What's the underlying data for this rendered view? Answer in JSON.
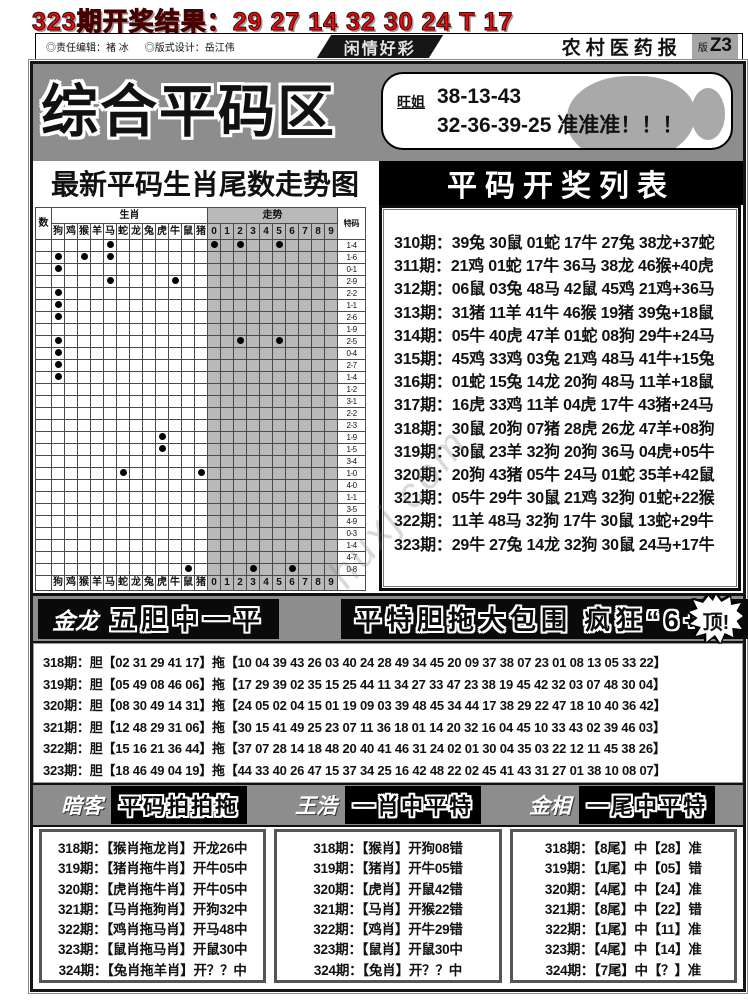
{
  "banner": {
    "text": "323期开奖结果：29 27 14 32 30 24 T 17"
  },
  "masthead": {
    "editor": "◎责任编辑：褚 冰",
    "designer": "◎版式设计：岳江伟",
    "center": "闲情好彩",
    "paper": "农村医药报",
    "edition_prefix": "版",
    "edition_code": "Z3"
  },
  "zone": {
    "title": "综合平码区",
    "tipster": "旺姐",
    "line1": "38-13-43",
    "line2": "32-36-39-25 准准准！！！"
  },
  "trend": {
    "title": "最新平码生肖尾数走势图",
    "left_header": "数",
    "group1": "生肖",
    "group2": "走势",
    "right_header": "特码",
    "zodiac": [
      "狗",
      "鸡",
      "猴",
      "羊",
      "马",
      "蛇",
      "龙",
      "兔",
      "虎",
      "牛",
      "鼠",
      "猪"
    ],
    "digits": [
      "0",
      "1",
      "2",
      "3",
      "4",
      "5",
      "6",
      "7",
      "8",
      "9"
    ],
    "rows": [
      {
        "z": [
          4
        ],
        "t": [
          0,
          2,
          5
        ],
        "s": "1-4"
      },
      {
        "z": [
          0,
          2,
          4
        ],
        "t": [],
        "s": "1-6"
      },
      {
        "z": [
          0
        ],
        "t": [],
        "s": "0-1"
      },
      {
        "z": [
          4,
          9
        ],
        "t": [],
        "s": "2-9"
      },
      {
        "z": [
          0
        ],
        "t": [],
        "s": "2-2"
      },
      {
        "z": [
          0
        ],
        "t": [],
        "s": "1-1"
      },
      {
        "z": [
          0
        ],
        "t": [],
        "s": "2-6"
      },
      {
        "z": [],
        "t": [],
        "s": "1-9"
      },
      {
        "z": [
          0
        ],
        "t": [
          2,
          5
        ],
        "s": "2-5"
      },
      {
        "z": [
          0
        ],
        "t": [],
        "s": "0-4"
      },
      {
        "z": [
          0
        ],
        "t": [],
        "s": "2-7"
      },
      {
        "z": [
          0
        ],
        "t": [],
        "s": "1-4"
      },
      {
        "z": [],
        "t": [],
        "s": "1-2"
      },
      {
        "z": [],
        "t": [],
        "s": "3-1"
      },
      {
        "z": [],
        "t": [],
        "s": "2-2"
      },
      {
        "z": [],
        "t": [],
        "s": "2-3"
      },
      {
        "z": [
          8
        ],
        "t": [],
        "s": "1-9"
      },
      {
        "z": [
          8
        ],
        "t": [],
        "s": "1-5"
      },
      {
        "z": [],
        "t": [],
        "s": "3-4"
      },
      {
        "z": [
          5,
          11
        ],
        "t": [],
        "s": "1-0"
      },
      {
        "z": [],
        "t": [],
        "s": "4-0"
      },
      {
        "z": [],
        "t": [],
        "s": "1-1"
      },
      {
        "z": [],
        "t": [],
        "s": "3-5"
      },
      {
        "z": [],
        "t": [],
        "s": "4-9"
      },
      {
        "z": [],
        "t": [],
        "s": "0-3"
      },
      {
        "z": [],
        "t": [],
        "s": "1-4"
      },
      {
        "z": [],
        "t": [],
        "s": "4-7"
      },
      {
        "z": [
          10
        ],
        "t": [
          3,
          6
        ],
        "s": "0-8"
      }
    ]
  },
  "list": {
    "title": "平码开奖列表",
    "rows": [
      {
        "period": "310期：",
        "text": "39兔 30鼠 01蛇 17牛 27兔 38龙+37蛇"
      },
      {
        "period": "311期：",
        "text": "21鸡 01蛇 17牛 36马 38龙 46猴+40虎"
      },
      {
        "period": "312期：",
        "text": "06鼠 03兔 48马 42鼠 45鸡 21鸡+36马"
      },
      {
        "period": "313期：",
        "text": "31猪 11羊 41牛 46猴 19猪 39兔+18鼠"
      },
      {
        "period": "314期：",
        "text": "05牛 40虎 47羊 01蛇 08狗 29牛+24马"
      },
      {
        "period": "315期：",
        "text": "45鸡 33鸡 03兔 21鸡 48马 41牛+15兔"
      },
      {
        "period": "316期：",
        "text": "01蛇 15兔 14龙 20狗 48马 11羊+18鼠"
      },
      {
        "period": "317期：",
        "text": "16虎 33鸡 11羊 04虎 17牛 43猪+24马"
      },
      {
        "period": "318期：",
        "text": "30鼠 20狗 07猪 28虎 26龙 47羊+08狗"
      },
      {
        "period": "319期：",
        "text": "30鼠 23羊 32狗 20狗 36马 04虎+05牛"
      },
      {
        "period": "320期：",
        "text": "20狗 43猪 05牛 24马 01蛇 35羊+42鼠"
      },
      {
        "period": "321期：",
        "text": "05牛 29牛 30鼠 21鸡 32狗 01蛇+22猴"
      },
      {
        "period": "322期：",
        "text": "11羊 48马 32狗 17牛 30鼠 13蛇+29牛"
      },
      {
        "period": "323期：",
        "text": "29牛 27兔 14龙 32狗 30鼠 24马+17牛"
      }
    ]
  },
  "jinlong": {
    "name": "金龙",
    "slogan": "五胆中一平",
    "promo": "平特胆拖大包围 疯狂“6+1”",
    "badge": "顶!"
  },
  "dantuo": {
    "rows": [
      {
        "period": "318期：",
        "body": "胆【02 31 29 41 17】拖【10 04 39 43 26 03 40 24 28 49 34 45 20 09 37 38 07 23 01 08 13 05 33 22】"
      },
      {
        "period": "319期：",
        "body": "胆【05 49 08 46 06】拖【17 29 39 02 35 15 25 44 11 34 27 33 47 23 38 19 45 42 32 03 07 48 30 04】"
      },
      {
        "period": "320期：",
        "body": "胆【08 30 49 14 31】拖【24 05 02 04 15 01 19 09 03 39 48 45 34 44 17 38 29 22 47 18 10 40 36 42】"
      },
      {
        "period": "321期：",
        "body": "胆【12 48 29 31 06】拖【30 15 41 49 25 23 07 11 36 18 01 14 20 32 16 04 45 10 33 43 02 39 46 03】"
      },
      {
        "period": "322期：",
        "body": "胆【15 16 21 36 44】拖【37 07 28 14 18 48 20 40 41 46 31 24 02 01 30 04 35 03 22 12 11 45 38 26】"
      },
      {
        "period": "323期：",
        "body": "胆【18 46 49 04 19】拖【44 33 40 26 47 15 37 34 25 16 42 48 22 02 45 41 43 31 27 01 38 10 08 07】"
      }
    ]
  },
  "bottom": {
    "sections": [
      {
        "name": "暗客",
        "title": "平码拍拍拖",
        "rows": [
          {
            "period": "318期：",
            "text": "【猴肖拖龙肖】开龙26中"
          },
          {
            "period": "319期：",
            "text": "【猪肖拖牛肖】开牛05中"
          },
          {
            "period": "320期：",
            "text": "【虎肖拖牛肖】开牛05中"
          },
          {
            "period": "321期：",
            "text": "【马肖拖狗肖】开狗32中"
          },
          {
            "period": "322期：",
            "text": "【鸡肖拖马肖】开马48中"
          },
          {
            "period": "323期：",
            "text": "【鼠肖拖马肖】开鼠30中"
          },
          {
            "period": "324期：",
            "text": "【兔肖拖羊肖】开？？中"
          }
        ]
      },
      {
        "name": "王浩",
        "title": "一肖中平特",
        "rows": [
          {
            "period": "318期：",
            "text": "【猴肖】开狗08错"
          },
          {
            "period": "319期：",
            "text": "【猪肖】开牛05错"
          },
          {
            "period": "320期：",
            "text": "【虎肖】开鼠42错"
          },
          {
            "period": "321期：",
            "text": "【马肖】开猴22错"
          },
          {
            "period": "322期：",
            "text": "【鸡肖】开牛29错"
          },
          {
            "period": "323期：",
            "text": "【鼠肖】开鼠30中"
          },
          {
            "period": "324期：",
            "text": "【兔肖】开？？中"
          }
        ]
      },
      {
        "name": "金相",
        "title": "一尾中平特",
        "rows": [
          {
            "period": "318期：",
            "text": "【8尾】中【28】准"
          },
          {
            "period": "319期：",
            "text": "【1尾】中【05】错"
          },
          {
            "period": "320期：",
            "text": "【4尾】中【24】准"
          },
          {
            "period": "321期：",
            "text": "【8尾】中【22】错"
          },
          {
            "period": "322期：",
            "text": "【1尾】中【11】准"
          },
          {
            "period": "323期：",
            "text": "【4尾】中【14】准"
          },
          {
            "period": "324期：",
            "text": "【7尾】中【？】准"
          }
        ]
      }
    ]
  },
  "watermark": {
    "text": "huxj.com"
  },
  "colors": {
    "accent_red": "#e01010",
    "band_gray": "#8d8d8d",
    "trend_cell_gray": "#b9b9b9",
    "ink": "#111111"
  }
}
